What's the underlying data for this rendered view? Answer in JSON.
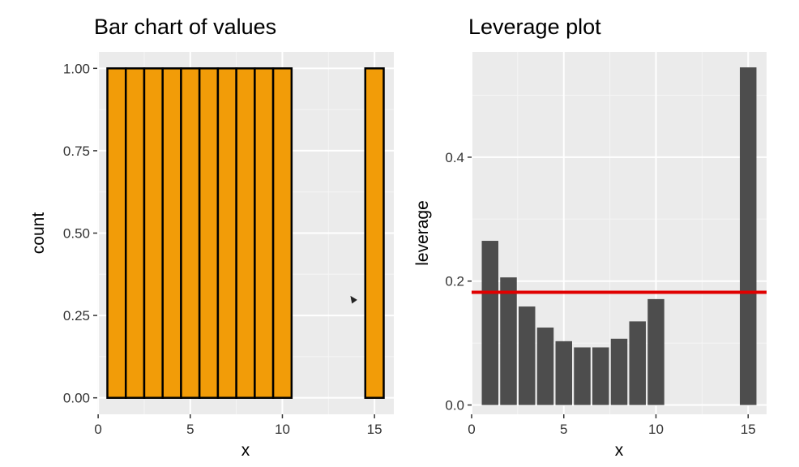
{
  "chart_data": [
    {
      "type": "bar",
      "title": "Bar chart of values",
      "xlabel": "x",
      "ylabel": "count",
      "x": [
        1,
        2,
        3,
        4,
        5,
        6,
        7,
        8,
        9,
        10,
        15
      ],
      "values": [
        1,
        1,
        1,
        1,
        1,
        1,
        1,
        1,
        1,
        1,
        1
      ],
      "xlim": [
        -0.05,
        16.05
      ],
      "ylim": [
        -0.05,
        1.05
      ],
      "xticks": [
        0,
        5,
        10,
        15
      ],
      "yticks": [
        0,
        0.25,
        0.5,
        0.75,
        1
      ],
      "ytick_labels": [
        "0.00",
        "0.25",
        "0.50",
        "0.75",
        "1.00"
      ],
      "xtick_labels": [
        "0",
        "5",
        "10",
        "15"
      ],
      "grid": true,
      "bar_fill": "#F29C08",
      "bar_stroke": "#000000"
    },
    {
      "type": "bar",
      "title": "Leverage plot",
      "xlabel": "x",
      "ylabel": "leverage",
      "x": [
        1,
        2,
        3,
        4,
        5,
        6,
        7,
        8,
        9,
        10,
        15
      ],
      "values": [
        0.265,
        0.206,
        0.159,
        0.125,
        0.103,
        0.093,
        0.093,
        0.107,
        0.135,
        0.171,
        0.545
      ],
      "hline": 0.182,
      "xlim": [
        0,
        16
      ],
      "ylim": [
        -0.015,
        0.57
      ],
      "xticks": [
        0,
        5,
        10,
        15
      ],
      "yticks": [
        0,
        0.2,
        0.4
      ],
      "ytick_labels": [
        "0.0",
        "0.2",
        "0.4"
      ],
      "xtick_labels": [
        "0",
        "5",
        "10",
        "15"
      ],
      "grid": true,
      "bar_fill": "#4D4D4D",
      "hline_color": "#E00000"
    }
  ]
}
